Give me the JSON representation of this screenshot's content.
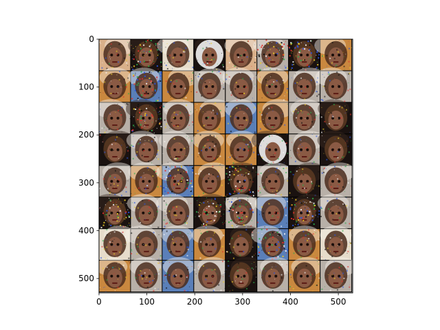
{
  "chart_data": {
    "type": "image",
    "title": "",
    "xlabel": "",
    "ylabel": "",
    "xlim": [
      0,
      530
    ],
    "ylim": [
      530,
      0
    ],
    "y_axis_inverted": true,
    "grid": false,
    "legend": "none",
    "x_ticks": [
      0,
      100,
      200,
      300,
      400,
      500
    ],
    "y_ticks": [
      0,
      100,
      200,
      300,
      400,
      500
    ],
    "x_tick_labels": [
      "0",
      "100",
      "200",
      "300",
      "400",
      "500"
    ],
    "y_tick_labels": [
      "0",
      "100",
      "200",
      "300",
      "400",
      "500"
    ],
    "grid_rows": 8,
    "grid_cols": 8,
    "tile_pitch": 66,
    "tile_border_color": "#000000",
    "tile_palettes": [
      "warm",
      "dark-noisy",
      "beige",
      "dark-halo",
      "warm",
      "gray-noisy",
      "dark-noisy",
      "orange",
      "orange",
      "blue-noisy",
      "orange",
      "gray",
      "gray",
      "orange",
      "gray",
      "gray",
      "gray",
      "dark-noisy",
      "gray",
      "orange",
      "blue",
      "orange",
      "gray",
      "dark",
      "dark",
      "gray",
      "gray",
      "orange",
      "orange",
      "dark-halo",
      "gray",
      "dark",
      "gray",
      "orange",
      "blue-noisy",
      "orange",
      "dark-noisy",
      "gray",
      "dark",
      "gray",
      "dark-noisy",
      "gray",
      "gray",
      "dark-noisy",
      "gray-noisy",
      "blue",
      "dark-noisy",
      "gray",
      "beige",
      "gray",
      "blue",
      "orange",
      "dark",
      "blue-noisy",
      "orange",
      "beige",
      "orange",
      "gray",
      "blue",
      "gray",
      "dark",
      "gray",
      "orange",
      "gray"
    ],
    "colors": {
      "warm": "#d9b08a",
      "orange": "#c9883f",
      "gray": "#b8b0a8",
      "beige": "#e6dccb",
      "blue": "#5a7fb8",
      "dark": "#1a1210",
      "skin": "#8a5a44",
      "noise_accents": [
        "#e0302a",
        "#2a55e0",
        "#f5f5f5",
        "#e8c828",
        "#2aa84a",
        "#101010"
      ]
    }
  }
}
